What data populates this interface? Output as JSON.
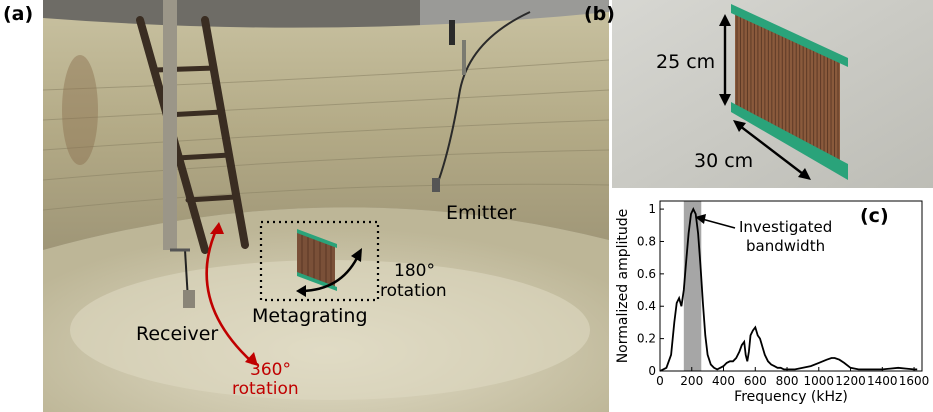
{
  "panel_a": {
    "label": "(a)",
    "emitter": "Emitter",
    "receiver": "Receiver",
    "metagrating": "Metagrating",
    "rotation_180_deg": "180°",
    "rotation_180_word": "rotation",
    "rotation_360_deg": "360°",
    "rotation_360_word": "rotation",
    "colors": {
      "accent_red": "#c00000",
      "tank_wall": "#b9b18f",
      "tank_floor": "#d3cdb2"
    }
  },
  "panel_b": {
    "label": "(b)",
    "height_label": "25 cm",
    "length_label": "30 cm",
    "colors": {
      "frame_green": "#2aa37a",
      "rods": "#8a5a3c"
    }
  },
  "panel_c": {
    "label": "(c)",
    "annotation_line1": "Investigated",
    "annotation_line2": "bandwidth"
  },
  "chart_data": {
    "type": "line",
    "title": "",
    "xlabel": "Frequency (kHz)",
    "ylabel": "Normalized amplitude",
    "xlim": [
      0,
      1650
    ],
    "ylim": [
      0,
      1.05
    ],
    "x_ticks": [
      0,
      200,
      400,
      600,
      800,
      1000,
      1200,
      1400,
      1600
    ],
    "x_tick_labels": [
      "0",
      "200",
      "400",
      "600",
      "800",
      "1000",
      "1200",
      "1400",
      "1600"
    ],
    "y_ticks": [
      0,
      0.2,
      0.4,
      0.6,
      0.8,
      1
    ],
    "y_tick_labels": [
      "0",
      "0.2",
      "0.4",
      "0.6",
      "0.8",
      "1"
    ],
    "grid": false,
    "highlight_band": {
      "x_start": 150,
      "x_end": 260,
      "color": "#a6a6a6"
    },
    "series": [
      {
        "color": "#000000",
        "x": [
          0,
          40,
          70,
          90,
          105,
          120,
          135,
          150,
          165,
          180,
          195,
          210,
          225,
          240,
          255,
          270,
          285,
          300,
          320,
          340,
          360,
          380,
          400,
          420,
          440,
          460,
          480,
          500,
          515,
          530,
          540,
          550,
          560,
          570,
          585,
          600,
          615,
          630,
          645,
          660,
          680,
          700,
          720,
          740,
          760,
          780,
          800,
          850,
          900,
          950,
          1000,
          1050,
          1080,
          1100,
          1130,
          1160,
          1200,
          1250,
          1300,
          1400,
          1500,
          1550,
          1600,
          1620
        ],
        "y": [
          0.0,
          0.02,
          0.1,
          0.3,
          0.42,
          0.45,
          0.4,
          0.5,
          0.68,
          0.85,
          0.97,
          1.0,
          0.97,
          0.85,
          0.65,
          0.42,
          0.22,
          0.1,
          0.04,
          0.02,
          0.01,
          0.02,
          0.03,
          0.05,
          0.06,
          0.06,
          0.08,
          0.12,
          0.16,
          0.18,
          0.1,
          0.06,
          0.12,
          0.22,
          0.25,
          0.27,
          0.22,
          0.2,
          0.15,
          0.1,
          0.06,
          0.04,
          0.03,
          0.02,
          0.02,
          0.01,
          0.01,
          0.01,
          0.02,
          0.03,
          0.05,
          0.07,
          0.08,
          0.08,
          0.07,
          0.05,
          0.02,
          0.01,
          0.01,
          0.01,
          0.02,
          0.015,
          0.01,
          0.01
        ]
      }
    ]
  }
}
